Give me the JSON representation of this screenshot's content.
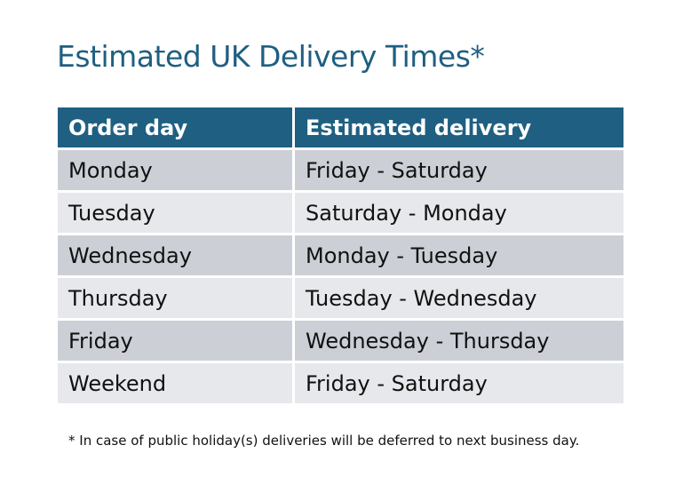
{
  "title": "Estimated UK Delivery Times*",
  "table": {
    "headers": [
      "Order day",
      "Estimated delivery"
    ],
    "rows": [
      [
        "Monday",
        "Friday - Saturday"
      ],
      [
        "Tuesday",
        "Saturday - Monday"
      ],
      [
        "Wednesday",
        "Monday - Tuesday"
      ],
      [
        "Thursday",
        "Tuesday - Wednesday"
      ],
      [
        "Friday",
        "Wednesday - Thursday"
      ],
      [
        "Weekend",
        "Friday - Saturday"
      ]
    ]
  },
  "footnote": "* In case of public holiday(s) deliveries will be deferred to next business day.",
  "colors": {
    "header": "#1f5f82",
    "row_dark": "#ccd0d6",
    "row_light": "#e6e8eb",
    "title": "#1f5f82"
  }
}
